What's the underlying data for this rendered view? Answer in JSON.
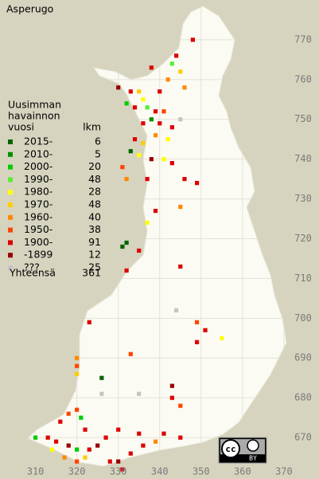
{
  "chart_data": {
    "type": "map",
    "title": "Asperugo",
    "legend": {
      "title": [
        "Uusimman",
        "havainnon",
        "vuosi"
      ],
      "count_header": "lkm",
      "rows": [
        {
          "label": "2015-",
          "color": "#006400",
          "count": 6
        },
        {
          "label": "2010-",
          "color": "#009000",
          "count": 5
        },
        {
          "label": "2000-",
          "color": "#00cc00",
          "count": 20
        },
        {
          "label": "1990-",
          "color": "#55ee33",
          "count": 48
        },
        {
          "label": "1980-",
          "color": "#ffff00",
          "count": 28
        },
        {
          "label": "1970-",
          "color": "#ffcc00",
          "count": 48
        },
        {
          "label": "1960-",
          "color": "#ff8800",
          "count": 40
        },
        {
          "label": "1950-",
          "color": "#ff4400",
          "count": 38
        },
        {
          "label": "1900-",
          "color": "#dd0000",
          "count": 91
        },
        {
          "label": "-1899",
          "color": "#990000",
          "count": 12
        },
        {
          "label": "???",
          "color": "#c4c4c4",
          "count": 25
        }
      ],
      "total_label": "Yhteensä",
      "total": 361
    },
    "xlim": [
      302.4,
      375.2
    ],
    "ylim": [
      660.2,
      780
    ],
    "xticks": [
      310,
      320,
      330,
      340,
      350,
      360,
      370
    ],
    "yticks": [
      670,
      680,
      690,
      700,
      710,
      720,
      730,
      740,
      750,
      760,
      770
    ],
    "points": {
      "x": [
        348,
        344,
        343,
        345,
        342,
        346,
        340,
        338,
        330,
        333,
        335,
        336,
        332,
        334,
        337,
        339,
        341,
        338,
        336,
        340,
        343,
        345,
        342,
        339,
        336,
        334,
        333,
        335,
        338,
        341,
        343,
        331,
        332,
        337,
        346,
        349,
        345,
        339,
        337,
        332,
        331,
        335,
        345,
        332,
        344,
        349,
        351,
        349,
        355,
        323,
        333,
        320,
        320,
        320,
        326,
        326,
        335,
        343,
        343,
        345,
        320,
        318,
        321,
        316,
        313,
        310,
        315,
        318,
        320,
        323,
        325,
        322,
        320,
        317,
        314,
        328,
        330,
        331,
        333,
        336,
        339,
        341,
        345,
        335,
        330,
        322,
        327
      ],
      "y": [
        770,
        766,
        764,
        762,
        760,
        758,
        757,
        763,
        758,
        757,
        757,
        755,
        754,
        753,
        753,
        752,
        752,
        750,
        749,
        749,
        748,
        750,
        745,
        746,
        744,
        745,
        742,
        741,
        740,
        740,
        739,
        738,
        735,
        735,
        735,
        734,
        728,
        727,
        724,
        719,
        718,
        717,
        713,
        712,
        702,
        699,
        697,
        694,
        695,
        699,
        691,
        690,
        688,
        686,
        685,
        681,
        681,
        680,
        683,
        678,
        677,
        676,
        675,
        674,
        670,
        670,
        669,
        668,
        667,
        667,
        668,
        665,
        664,
        665,
        667,
        664,
        664,
        662,
        666,
        668,
        669,
        671,
        670,
        671,
        672,
        672,
        670
      ],
      "category": [
        8,
        8,
        3,
        5,
        6,
        6,
        8,
        8,
        9,
        8,
        5,
        4,
        2,
        8,
        3,
        8,
        7,
        1,
        8,
        8,
        8,
        10,
        4,
        6,
        5,
        8,
        0,
        4,
        9,
        4,
        8,
        7,
        6,
        8,
        8,
        8,
        6,
        8,
        4,
        0,
        0,
        8,
        8,
        8,
        10,
        7,
        8,
        8,
        4,
        8,
        7,
        6,
        7,
        5,
        0,
        10,
        10,
        8,
        9,
        7,
        7,
        7,
        2,
        8,
        8,
        2,
        8,
        9,
        2,
        8,
        9,
        5,
        7,
        6,
        4,
        8,
        9,
        8,
        8,
        8,
        6,
        8,
        8,
        8,
        8,
        8,
        8
      ]
    },
    "license": {
      "icon": "cc",
      "label": "BY"
    }
  }
}
